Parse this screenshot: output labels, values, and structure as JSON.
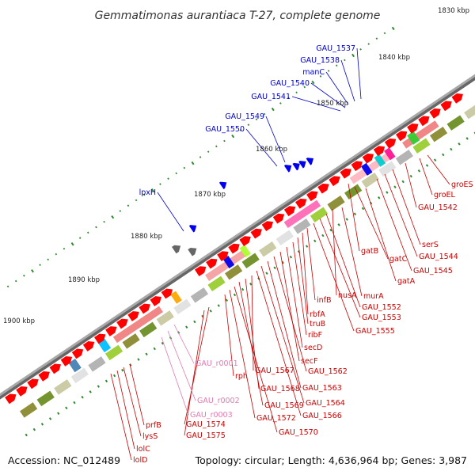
{
  "title": "Gemmatimonas aurantiaca T-27, complete genome",
  "footer": {
    "accession": "Accession: NC_012489",
    "summary": "Topology: circular; Length: 4,636,964 bp; Genes: 3,987"
  },
  "colors": {
    "backbone": "#8a8a8a",
    "tick": "#2e8b2e",
    "label_red": "#cc0000",
    "label_blue": "#0000cc",
    "label_pink": "#e07ab0",
    "gene_red": "#ff0000",
    "gene_blue": "#0000ee"
  },
  "kbp_markers": [
    "1830 kbp",
    "1840 kbp",
    "1850 kbp",
    "1860 kbp",
    "1870 kbp",
    "1880 kbp",
    "1890 kbp",
    "1900 kbp"
  ],
  "blue_labels": [
    "GAU_1537",
    "GAU_1538",
    "manC",
    "GAU_1540",
    "GAU_1541",
    "GAU_1549",
    "GAU_1550",
    "lpxH"
  ],
  "red_labels": [
    "groES",
    "groEL",
    "GAU_1542",
    "serS",
    "GAU_1544",
    "GAU_1545",
    "gatB",
    "gatC",
    "gatA",
    "murA",
    "nusA",
    "GAU_1552",
    "GAU_1553",
    "GAU_1555",
    "infB",
    "rbfA",
    "truB",
    "ribF",
    "secD",
    "secF",
    "GAU_1562",
    "GAU_1563",
    "GAU_1564",
    "GAU_1566",
    "GAU_1567",
    "GAU_1568",
    "GAU_1569",
    "GAU_1570",
    "GAU_1572",
    "rph",
    "GAU_1574",
    "GAU_1575",
    "prfB",
    "lysS",
    "lolC",
    "lolD"
  ],
  "pink_labels": [
    "GAU_r0001",
    "GAU_r0002",
    "GAU_r0003"
  ]
}
